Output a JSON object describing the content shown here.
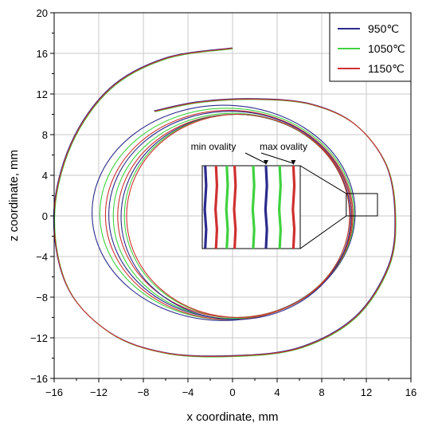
{
  "chart_data": {
    "type": "line",
    "xlabel": "x coordinate, mm",
    "ylabel": "z coordinate, mm",
    "xlim": [
      -16,
      16
    ],
    "ylim": [
      -16,
      20
    ],
    "xticks": [
      "−16",
      "−12",
      "−8",
      "−4",
      "0",
      "4",
      "8",
      "12",
      "16"
    ],
    "yticks": [
      "−16",
      "−12",
      "−8",
      "−4",
      "0",
      "4",
      "8",
      "12",
      "16",
      "20"
    ],
    "grid": true,
    "legend_position": "top-right",
    "series": [
      {
        "name": "950℃",
        "color": "#2b2b8c"
      },
      {
        "name": "1050℃",
        "color": "#3fd23f"
      },
      {
        "name": "1150℃",
        "color": "#d03030"
      }
    ],
    "spiral": {
      "start": [
        0,
        16.5
      ],
      "path": [
        [
          -6,
          15.5
        ],
        [
          -11,
          12.5
        ],
        [
          -14.5,
          7
        ],
        [
          -16,
          0
        ],
        [
          -14.8,
          -7
        ],
        [
          -11,
          -11.5
        ],
        [
          -6,
          -13.5
        ],
        [
          0,
          -13.8
        ],
        [
          6,
          -13
        ],
        [
          11,
          -10
        ],
        [
          14,
          -5
        ],
        [
          14.6,
          0
        ],
        [
          13.8,
          5
        ],
        [
          11,
          9
        ],
        [
          7,
          11
        ],
        [
          2,
          11.5
        ],
        [
          -3,
          11.2
        ],
        [
          -7,
          10.3
        ]
      ]
    },
    "loops": [
      {
        "series": 0,
        "cx": -0.8,
        "cz": 0.3,
        "rx": 11.8,
        "rz": 10.6
      },
      {
        "series": 1,
        "cx": -0.5,
        "cz": 0.2,
        "rx": 11.4,
        "rz": 10.4
      },
      {
        "series": 2,
        "cx": -0.3,
        "cz": 0.1,
        "rx": 11.1,
        "rz": 10.3
      },
      {
        "series": 0,
        "cx": -0.2,
        "cz": 0.1,
        "rx": 10.9,
        "rz": 10.2
      },
      {
        "series": 1,
        "cx": 0.0,
        "cz": 0.0,
        "rx": 10.7,
        "rz": 10.1
      },
      {
        "series": 2,
        "cx": 0.2,
        "cz": 0.0,
        "rx": 10.5,
        "rz": 10.0
      },
      {
        "series": 0,
        "cx": 0.3,
        "cz": -0.1,
        "rx": 10.3,
        "rz": 10.1
      },
      {
        "series": 1,
        "cx": 0.4,
        "cz": 0.0,
        "rx": 10.1,
        "rz": 10.0
      },
      {
        "series": 2,
        "cx": 0.5,
        "cz": 0.0,
        "rx": 10.0,
        "rz": 10.0
      }
    ],
    "zoom_box": {
      "x": [
        10.2,
        13.0
      ],
      "z": [
        0,
        2.2
      ]
    },
    "inset": {
      "lines": [
        {
          "series": 0,
          "pos": 0.03
        },
        {
          "series": 2,
          "pos": 0.14
        },
        {
          "series": 1,
          "pos": 0.25
        },
        {
          "series": 2,
          "pos": 0.33
        },
        {
          "series": 1,
          "pos": 0.52
        },
        {
          "series": 0,
          "pos": 0.65
        },
        {
          "series": 1,
          "pos": 0.79
        },
        {
          "series": 2,
          "pos": 0.93
        }
      ],
      "annotations": [
        {
          "text": "min ovality",
          "target_line": 5
        },
        {
          "text": "max ovality",
          "target_line": 7
        }
      ]
    }
  }
}
